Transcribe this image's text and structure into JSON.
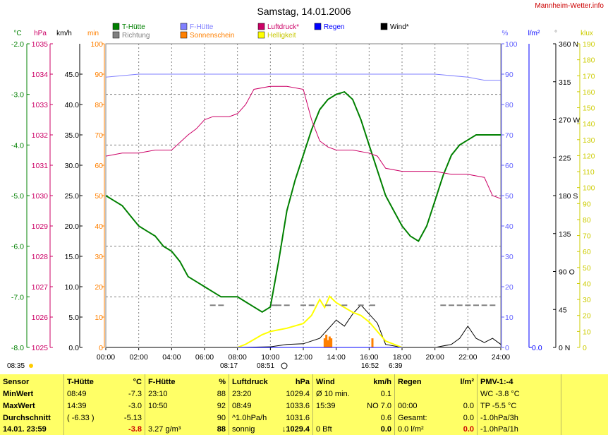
{
  "title": "Samstag, 14.01.2006",
  "site": "Mannheim-Wetter.info",
  "legend": [
    {
      "name": "T-Hütte",
      "color": "#008000",
      "col": 0,
      "row": 0
    },
    {
      "name": "Richtung",
      "color": "#808080",
      "col": 0,
      "row": 1
    },
    {
      "name": "F-Hütte",
      "color": "#8080ff",
      "col": 1,
      "row": 0
    },
    {
      "name": "Sonnenschein",
      "color": "#ff8000",
      "col": 1,
      "row": 1
    },
    {
      "name": "Luftdruck*",
      "color": "#cc0066",
      "col": 2,
      "row": 0
    },
    {
      "name": "Helligkeit",
      "color": "#ffff00",
      "col": 2,
      "row": 1
    },
    {
      "name": "Regen",
      "color": "#0000ff",
      "col": 3,
      "row": 0
    },
    {
      "name": "Wind*",
      "color": "#000000",
      "col": 4,
      "row": 0
    }
  ],
  "units": {
    "temp": "°C",
    "press": "hPa",
    "wind": "km/h",
    "min": "min",
    "hum": "%",
    "rain": "l/m²",
    "dir": "°",
    "lux": "klux"
  },
  "axes": {
    "temp": {
      "color": "#008000",
      "ticks": [
        "-2.0",
        "-3.0",
        "-4.0",
        "-5.0",
        "-6.0",
        "-7.0",
        "-8.0"
      ]
    },
    "press": {
      "color": "#cc0066",
      "ticks": [
        "1035",
        "1034",
        "1033",
        "1032",
        "1031",
        "1030",
        "1029",
        "1028",
        "1027",
        "1026",
        "1025"
      ]
    },
    "wind": {
      "color": "#000000",
      "ticks": [
        "45.0",
        "40.0",
        "35.0",
        "30.0",
        "25.0",
        "20.0",
        "15.0",
        "10.0",
        "5.0",
        "0.0"
      ]
    },
    "min": {
      "color": "#ff8000",
      "ticks": [
        "100",
        "90",
        "80",
        "70",
        "60",
        "50",
        "40",
        "30",
        "20",
        "10",
        "0"
      ]
    },
    "hum": {
      "color": "#6060ff",
      "ticks": [
        "100",
        "90",
        "80",
        "70",
        "60",
        "50",
        "40",
        "30",
        "20",
        "10",
        "0"
      ]
    },
    "rain": {
      "color": "#0000ff",
      "ticks": [
        "0.0"
      ]
    },
    "dir": {
      "color": "#000000",
      "ticks": [
        "360 N",
        "315",
        "270 W",
        "225",
        "180 S",
        "135",
        "90  O",
        "45",
        "0 N"
      ]
    },
    "lux": {
      "color": "#cccc00",
      "ticks": [
        "190",
        "180",
        "170",
        "160",
        "150",
        "140",
        "130",
        "120",
        "110",
        "100",
        "90",
        "80",
        "70",
        "60",
        "50",
        "40",
        "30",
        "20",
        "10",
        "0"
      ]
    },
    "time": [
      "00:00",
      "02:00",
      "04:00",
      "06:00",
      "08:00",
      "10:00",
      "12:00",
      "14:00",
      "16:00",
      "18:00",
      "20:00",
      "22:00",
      "24:00"
    ]
  },
  "markers": {
    "sunrise_left": "08:35",
    "dawn": "08:17",
    "sunrise": "08:51",
    "sunset": "16:52",
    "dusk": "6:39"
  },
  "chart_data": {
    "type": "line",
    "title": "Samstag, 14.01.2006",
    "x_unit": "hours",
    "xlim": [
      0,
      24
    ],
    "series": [
      {
        "name": "T-Hütte",
        "axis": "temp",
        "ylim": [
          -8,
          -2
        ],
        "x": [
          0,
          0.5,
          1,
          1.5,
          2,
          2.5,
          3,
          3.5,
          4,
          4.5,
          5,
          5.5,
          6,
          6.5,
          7,
          7.5,
          8,
          8.5,
          9,
          9.5,
          10,
          10.5,
          11,
          11.5,
          12,
          12.5,
          13,
          13.5,
          14,
          14.5,
          15,
          15.5,
          16,
          16.5,
          17,
          17.5,
          18,
          18.5,
          19,
          19.5,
          20,
          20.5,
          21,
          21.5,
          22,
          22.5,
          23,
          23.5,
          24
        ],
        "y": [
          -5.0,
          -5.1,
          -5.2,
          -5.4,
          -5.6,
          -5.7,
          -5.8,
          -6.0,
          -6.1,
          -6.3,
          -6.6,
          -6.7,
          -6.8,
          -6.9,
          -7.0,
          -7.0,
          -7.0,
          -7.1,
          -7.2,
          -7.3,
          -7.2,
          -6.3,
          -5.3,
          -4.7,
          -4.2,
          -3.7,
          -3.3,
          -3.1,
          -3.0,
          -2.95,
          -3.1,
          -3.5,
          -4.0,
          -4.5,
          -5.0,
          -5.3,
          -5.6,
          -5.8,
          -5.9,
          -5.6,
          -5.1,
          -4.6,
          -4.2,
          -4.0,
          -3.9,
          -3.8,
          -3.8,
          -3.8,
          -3.8
        ]
      },
      {
        "name": "F-Hütte",
        "axis": "hum",
        "ylim": [
          0,
          100
        ],
        "x": [
          0,
          2,
          4,
          6,
          8,
          10,
          12,
          14,
          16,
          18,
          20,
          22,
          23,
          24
        ],
        "y": [
          89,
          90,
          90,
          90,
          90,
          90,
          90,
          90,
          90,
          90,
          90,
          89,
          88,
          88
        ]
      },
      {
        "name": "Luftdruck*",
        "axis": "press",
        "ylim": [
          1025,
          1035
        ],
        "x": [
          0,
          1,
          2,
          3,
          4,
          5,
          5.5,
          6,
          6.5,
          7,
          7.5,
          8,
          8.5,
          9,
          10,
          11,
          12,
          12.5,
          13,
          13.5,
          14,
          15,
          16,
          16.5,
          17,
          18,
          19,
          20,
          21,
          22,
          23,
          23.5,
          24
        ],
        "y": [
          1031.3,
          1031.4,
          1031.4,
          1031.5,
          1031.5,
          1032.0,
          1032.2,
          1032.5,
          1032.6,
          1032.6,
          1032.6,
          1032.7,
          1033.0,
          1033.5,
          1033.6,
          1033.6,
          1033.5,
          1032.5,
          1031.8,
          1031.6,
          1031.5,
          1031.5,
          1031.4,
          1031.3,
          1030.9,
          1030.8,
          1030.8,
          1030.8,
          1030.7,
          1030.7,
          1030.6,
          1030.0,
          1029.9
        ]
      },
      {
        "name": "Wind*",
        "axis": "wind",
        "ylim": [
          0,
          50
        ],
        "x": [
          0,
          8,
          10,
          11,
          12,
          13,
          13.5,
          14,
          14.5,
          15,
          15.5,
          16,
          16.5,
          17,
          18,
          20,
          21,
          21.5,
          22,
          22.5,
          23,
          23.5,
          24
        ],
        "y": [
          0,
          0,
          0.1,
          0.5,
          0.6,
          1.5,
          3.0,
          4.5,
          3.5,
          5.5,
          7.0,
          5.5,
          4.0,
          0.5,
          0,
          0,
          0.5,
          1.5,
          3.5,
          1.5,
          0.8,
          1.5,
          0.5
        ]
      },
      {
        "name": "Helligkeit",
        "axis": "lux",
        "ylim": [
          0,
          190
        ],
        "x": [
          0,
          8,
          8.5,
          9,
          9.5,
          10,
          11,
          12,
          12.5,
          13,
          13.3,
          13.6,
          14,
          14.5,
          15,
          15.5,
          16,
          16.5,
          17,
          18,
          24
        ],
        "y": [
          0,
          0,
          2,
          5,
          8,
          10,
          12,
          15,
          20,
          30,
          25,
          32,
          28,
          25,
          22,
          20,
          16,
          10,
          4,
          0,
          0
        ]
      },
      {
        "name": "Sonnenschein",
        "axis": "min",
        "type": "bar",
        "ylim": [
          0,
          100
        ],
        "x": [
          13.3,
          13.4,
          13.5,
          13.6,
          13.7,
          16.2
        ],
        "y": [
          5,
          7,
          4,
          6,
          5,
          5
        ]
      },
      {
        "name": "Richtung",
        "axis": "dir",
        "type": "scatter",
        "ylim": [
          0,
          360
        ],
        "x": [
          6.5,
          7.0,
          10.2,
          10.5,
          11.0,
          12.0,
          12.5,
          13.5,
          14.5,
          15.5,
          16.2,
          20.5,
          21.0,
          21.5,
          22.0,
          22.5,
          23.0,
          23.5
        ],
        "y": [
          50,
          50,
          50,
          50,
          50,
          50,
          50,
          50,
          50,
          50,
          50,
          50,
          50,
          50,
          50,
          50,
          50,
          50
        ]
      },
      {
        "name": "Regen",
        "axis": "rain",
        "ylim": [
          0,
          1
        ],
        "x": [
          0,
          24
        ],
        "y": [
          0,
          0
        ]
      }
    ]
  },
  "footer": {
    "sensor": {
      "head": "Sensor",
      "min": "MinWert",
      "max": "MaxWert",
      "avg": "Durchschnitt",
      "now": "14.01. 23:59"
    },
    "thuette": {
      "head": "T-Hütte",
      "unit": "°C",
      "min_t": "08:49",
      "min_v": "-7.3",
      "max_t": "14:39",
      "max_v": "-3.0",
      "avg_t": "( -6.33 )",
      "avg_v": "-5.13",
      "now_v": "-3.8"
    },
    "fhuette": {
      "head": "F-Hütte",
      "unit": "%",
      "min_t": "23:10",
      "min_v": "88",
      "max_t": "10:50",
      "max_v": "92",
      "avg_v": "90",
      "now_l": "3.27 g/m³",
      "now_v": "88"
    },
    "luftdruck": {
      "head": "Luftdruck",
      "unit": "hPa",
      "min_t": "23:20",
      "min_v": "1029.4",
      "max_t": "08:49",
      "max_v": "1033.6",
      "avg_t": "^1.0hPa/h",
      "avg_v": "1031.6",
      "now_l": "sonnig",
      "now_v": "↓1029.4"
    },
    "wind": {
      "head": "Wind",
      "unit": "km/h",
      "min_t": "Ø 10 min.",
      "min_v": "0.1",
      "max_t": "15:39",
      "max_v": "NO 7.0",
      "avg_v": "0.6",
      "now_l": "0 Bft",
      "now_v": "0.0"
    },
    "regen": {
      "head": "Regen",
      "unit": "l/m²",
      "max_t": "00:00",
      "max_v": "0.0",
      "avg_t": "Gesamt:",
      "avg_v": "0.0",
      "now_l": "0.0 l/m²",
      "now_v": "0.0"
    },
    "pmv": {
      "head": "PMV-1:-4",
      "l1": "WC -3.8 °C",
      "l2": "TP -5.5 °C",
      "l3": "-1.0hPa/3h",
      "l4": "-1.0hPa/1h"
    }
  }
}
